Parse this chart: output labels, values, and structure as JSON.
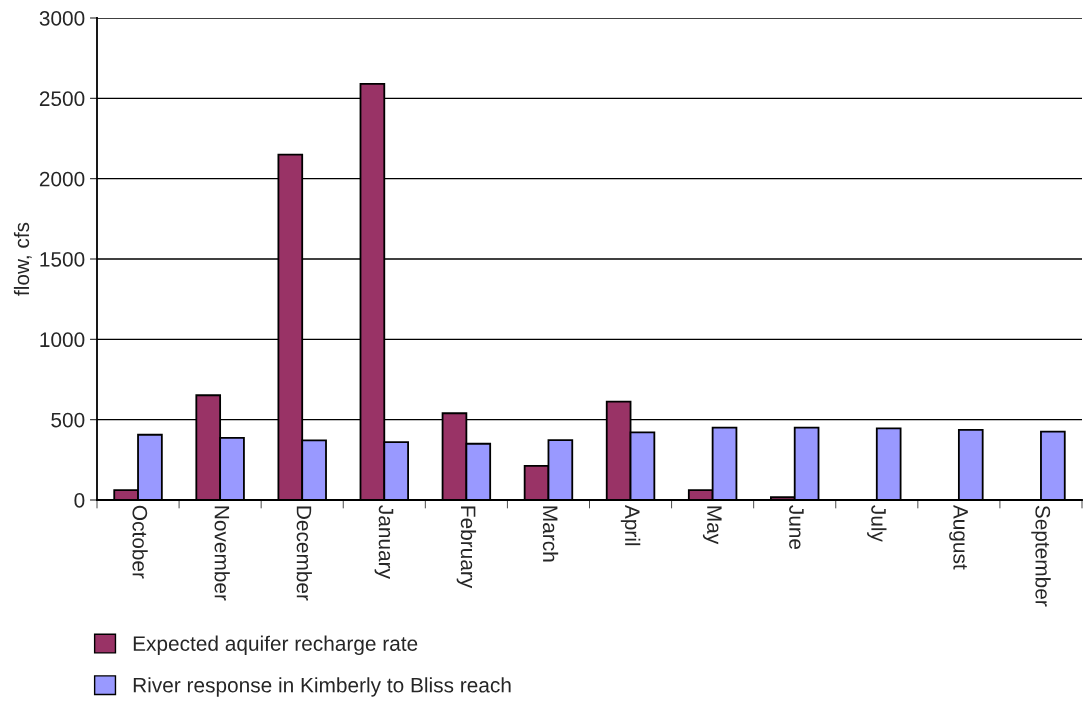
{
  "chart_data": {
    "type": "bar",
    "ylabel": "flow, cfs",
    "categories": [
      "October",
      "November",
      "December",
      "January",
      "February",
      "March",
      "April",
      "May",
      "June",
      "July",
      "August",
      "September"
    ],
    "series": [
      {
        "name": "Expected aquifer recharge rate",
        "color": "#993366",
        "values": [
          62,
          652,
          2150,
          2590,
          540,
          212,
          612,
          62,
          17,
          null,
          null,
          null
        ]
      },
      {
        "name": "River response in Kimberly to Bliss reach",
        "color": "#9999ff",
        "values": [
          406,
          387,
          371,
          360,
          350,
          373,
          421,
          450,
          450,
          446,
          437,
          425
        ]
      }
    ],
    "ylim": [
      0,
      3000
    ],
    "yticks": [
      0,
      500,
      1000,
      1500,
      2000,
      2500,
      3000
    ],
    "grid": "y",
    "legend": "bottom left"
  }
}
